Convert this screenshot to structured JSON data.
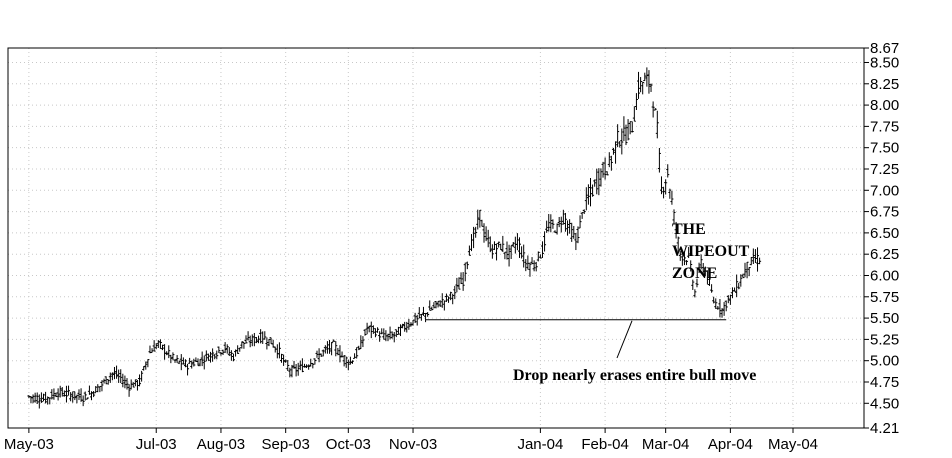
{
  "chart_data": {
    "type": "bar",
    "style": "ohlc",
    "title": "",
    "xlabel": "",
    "ylabel": "",
    "ylim": [
      4.21,
      8.67
    ],
    "y_ticks": [
      "4.21",
      "4.50",
      "4.75",
      "5.00",
      "5.25",
      "5.50",
      "5.75",
      "6.00",
      "6.25",
      "6.50",
      "6.75",
      "7.00",
      "7.25",
      "7.50",
      "7.75",
      "8.00",
      "8.25",
      "8.50",
      "8.67"
    ],
    "x_ticks": [
      {
        "label": "May-03",
        "day": 0
      },
      {
        "label": "Jul-03",
        "day": 61
      },
      {
        "label": "Aug-03",
        "day": 92
      },
      {
        "label": "Sep-03",
        "day": 123
      },
      {
        "label": "Oct-03",
        "day": 153
      },
      {
        "label": "Nov-03",
        "day": 184
      },
      {
        "label": "Jan-04",
        "day": 245
      },
      {
        "label": "Feb-04",
        "day": 276
      },
      {
        "label": "Mar-04",
        "day": 305
      },
      {
        "label": "Apr-04",
        "day": 336
      },
      {
        "label": "May-04",
        "day": 366
      }
    ],
    "grid": true,
    "y_axis_side": "right",
    "price_path": [
      [
        0,
        4.58
      ],
      [
        8,
        4.55
      ],
      [
        14,
        4.63
      ],
      [
        20,
        4.6
      ],
      [
        26,
        4.57
      ],
      [
        30,
        4.62
      ],
      [
        35,
        4.72
      ],
      [
        40,
        4.85
      ],
      [
        44,
        4.8
      ],
      [
        48,
        4.7
      ],
      [
        53,
        4.75
      ],
      [
        58,
        5.1
      ],
      [
        62,
        5.2
      ],
      [
        66,
        5.1
      ],
      [
        70,
        5.0
      ],
      [
        76,
        4.95
      ],
      [
        82,
        5.0
      ],
      [
        88,
        5.08
      ],
      [
        94,
        5.15
      ],
      [
        98,
        5.05
      ],
      [
        102,
        5.2
      ],
      [
        108,
        5.25
      ],
      [
        112,
        5.28
      ],
      [
        116,
        5.22
      ],
      [
        120,
        5.1
      ],
      [
        123,
        4.95
      ],
      [
        126,
        4.88
      ],
      [
        131,
        4.92
      ],
      [
        136,
        5.0
      ],
      [
        141,
        5.1
      ],
      [
        146,
        5.18
      ],
      [
        150,
        5.05
      ],
      [
        154,
        4.98
      ],
      [
        158,
        5.12
      ],
      [
        162,
        5.38
      ],
      [
        166,
        5.35
      ],
      [
        170,
        5.28
      ],
      [
        175,
        5.3
      ],
      [
        180,
        5.4
      ],
      [
        185,
        5.48
      ],
      [
        190,
        5.55
      ],
      [
        195,
        5.65
      ],
      [
        200,
        5.72
      ],
      [
        204,
        5.8
      ],
      [
        208,
        5.95
      ],
      [
        211,
        6.3
      ],
      [
        214,
        6.5
      ],
      [
        216,
        6.72
      ],
      [
        218,
        6.5
      ],
      [
        222,
        6.3
      ],
      [
        226,
        6.35
      ],
      [
        230,
        6.25
      ],
      [
        234,
        6.4
      ],
      [
        238,
        6.15
      ],
      [
        242,
        6.12
      ],
      [
        246,
        6.3
      ],
      [
        249,
        6.6
      ],
      [
        253,
        6.55
      ],
      [
        256,
        6.7
      ],
      [
        259,
        6.55
      ],
      [
        262,
        6.4
      ],
      [
        266,
        6.8
      ],
      [
        270,
        7.0
      ],
      [
        274,
        7.2
      ],
      [
        278,
        7.3
      ],
      [
        282,
        7.6
      ],
      [
        286,
        7.65
      ],
      [
        289,
        7.75
      ],
      [
        292,
        8.2
      ],
      [
        295,
        8.3
      ],
      [
        298,
        8.25
      ],
      [
        301,
        7.7
      ],
      [
        303,
        7.0
      ],
      [
        306,
        7.2
      ],
      [
        309,
        6.7
      ],
      [
        312,
        6.25
      ],
      [
        316,
        6.2
      ],
      [
        319,
        5.8
      ],
      [
        322,
        6.15
      ],
      [
        325,
        6.0
      ],
      [
        328,
        5.7
      ],
      [
        332,
        5.6
      ],
      [
        336,
        5.75
      ],
      [
        340,
        5.9
      ],
      [
        344,
        6.1
      ],
      [
        348,
        6.2
      ],
      [
        350,
        6.18
      ]
    ],
    "annotations": [
      {
        "type": "text",
        "lines": [
          "THE",
          "WIPEOUT",
          "ZONE"
        ]
      },
      {
        "type": "hline",
        "y": 5.48,
        "x_start_day": 190,
        "x_end_day": 334
      },
      {
        "type": "text",
        "lines": [
          "Drop nearly erases entire bull move"
        ]
      }
    ]
  }
}
